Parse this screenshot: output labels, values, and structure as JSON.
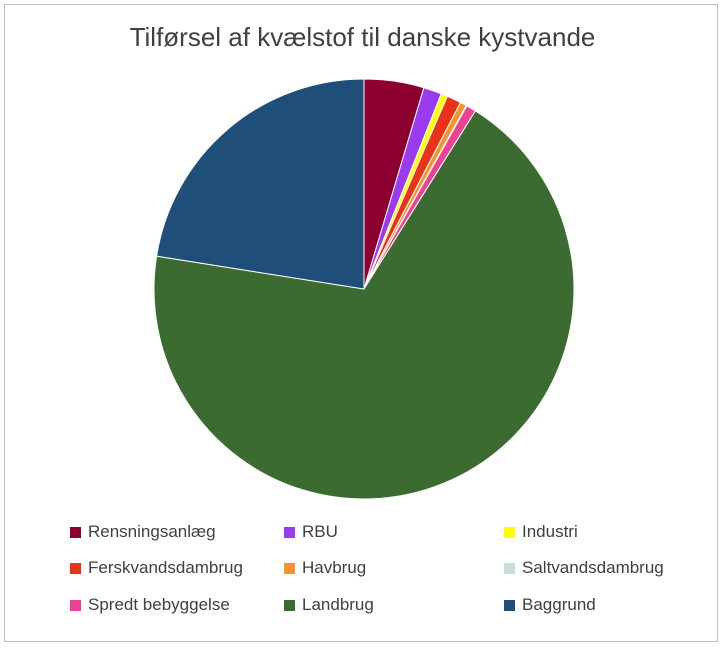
{
  "chart_data": {
    "type": "pie",
    "title": "Tilførsel af kvælstof til danske kystvande",
    "unit": "%",
    "slices": [
      {
        "label": "Rensningsanlæg",
        "value": 4.6,
        "color": "#8b0030"
      },
      {
        "label": "RBU",
        "value": 1.4,
        "color": "#9b3bef"
      },
      {
        "label": "Industri",
        "value": 0.5,
        "color": "#ffff00"
      },
      {
        "label": "Ferskvandsdambrug",
        "value": 1.1,
        "color": "#e8331a"
      },
      {
        "label": "Havbrug",
        "value": 0.5,
        "color": "#f0962a"
      },
      {
        "label": "Saltvandsdambrug",
        "value": 0.05,
        "color": "#c8e0d4"
      },
      {
        "label": "Spredt bebyggelse",
        "value": 0.75,
        "color": "#ec4296"
      },
      {
        "label": "Landbrug",
        "value": 68.6,
        "color": "#3c6b32"
      },
      {
        "label": "Baggrund",
        "value": 22.5,
        "color": "#1f4e79"
      }
    ],
    "legend_position": "bottom"
  }
}
